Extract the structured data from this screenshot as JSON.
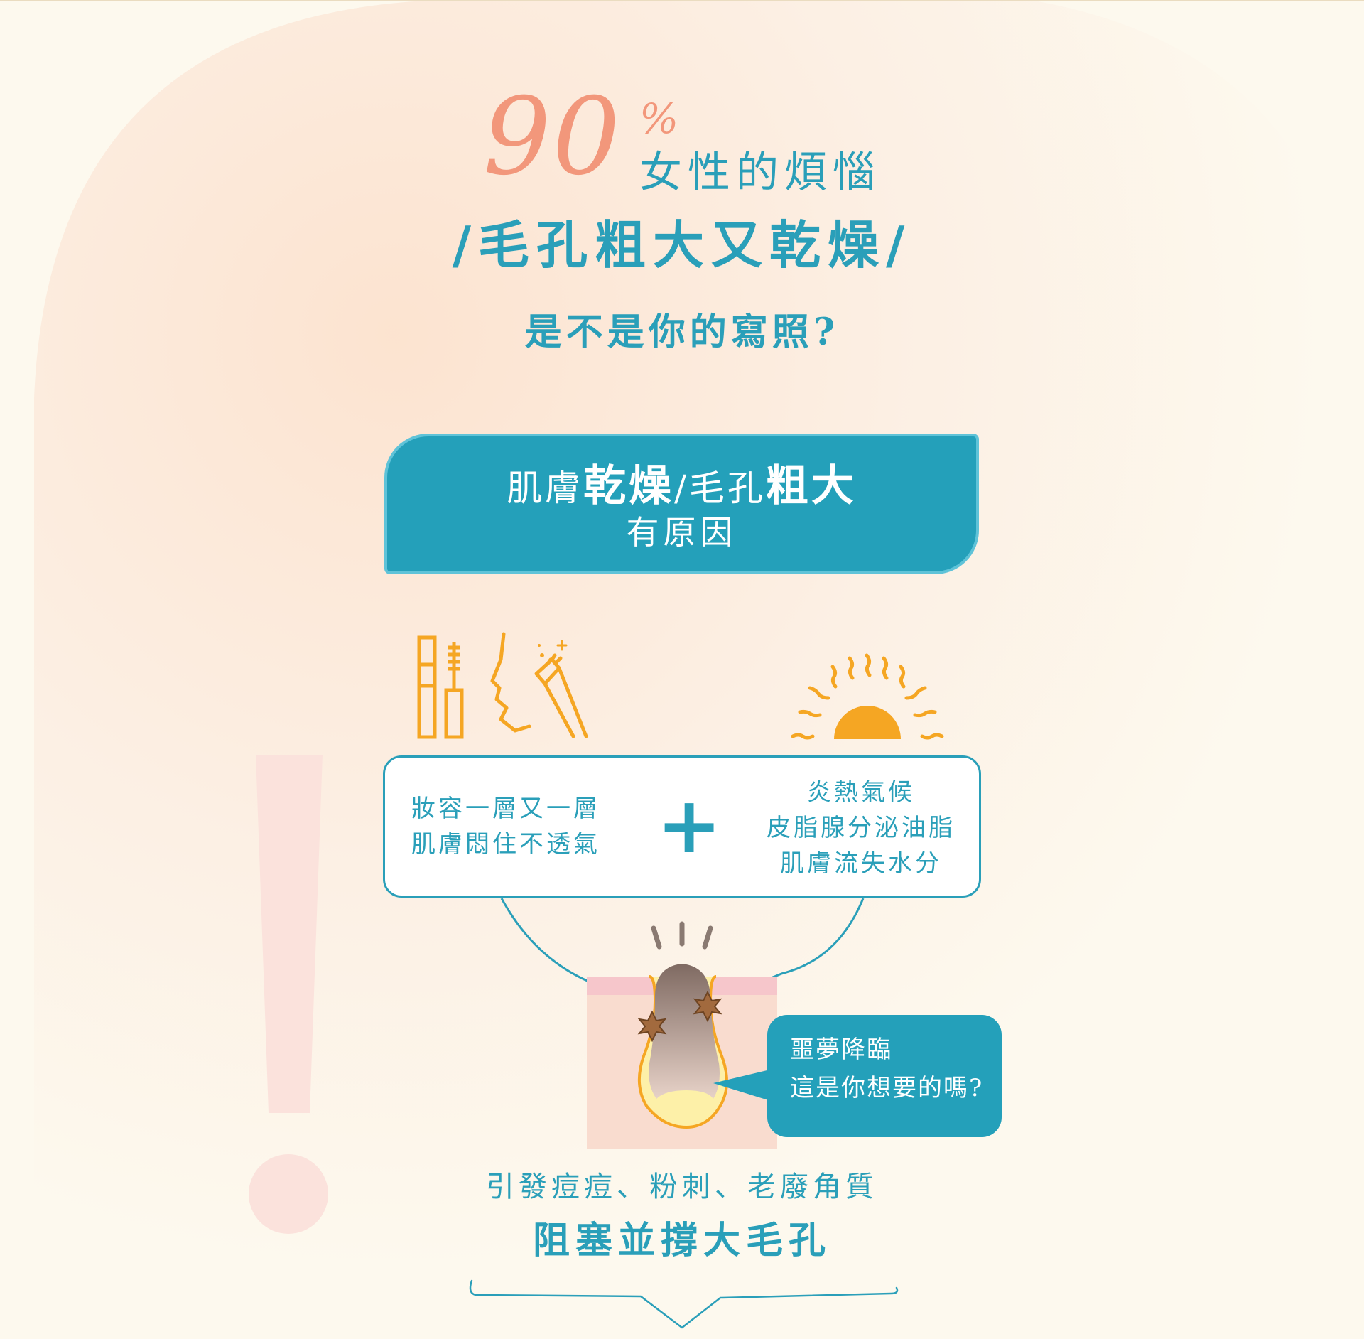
{
  "headline": {
    "percent_number": "90",
    "percent_sign": "%",
    "line1": "女性的煩惱",
    "line2": "/毛孔粗大又乾燥/",
    "line3": "是不是你的寫照?"
  },
  "cause": {
    "part1": "肌膚",
    "part2": "乾燥",
    "part3": "/毛孔",
    "part4": "粗大",
    "line2": "有原因"
  },
  "reasons": {
    "left_line1": "妝容一層又一層",
    "left_line2": "肌膚悶住不透氣",
    "plus": "+",
    "right_line1": "炎熱氣候",
    "right_line2": "皮脂腺分泌油脂",
    "right_line3": "肌膚流失水分"
  },
  "bubble": {
    "line1": "噩夢降臨",
    "line2": "這是你想要的嗎?"
  },
  "result": {
    "line1": "引發痘痘、粉刺、老廢角質",
    "line2": "阻塞並撐大毛孔"
  },
  "icons": [
    "makeup-icon",
    "cleansing-face-icon",
    "sun-icon",
    "pore-illustration",
    "arrow-down-icon"
  ],
  "colors": {
    "teal": "#24a0ba",
    "coral": "#f2977b",
    "orange": "#f5a623",
    "cream": "#fdf9ee",
    "skin": "#f9dccf",
    "skin_top": "#f6c6cb"
  }
}
